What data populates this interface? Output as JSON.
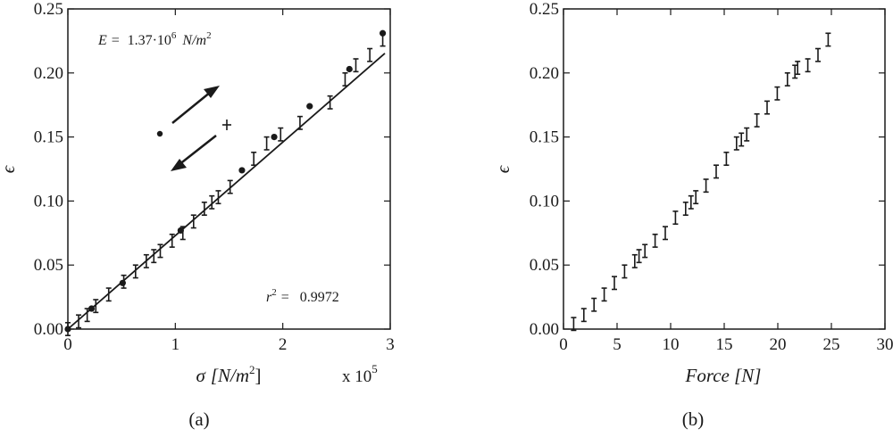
{
  "chart_data": [
    {
      "type": "scatter",
      "panel_label": "(a)",
      "xlabel_symbol": "σ",
      "xlabel_units": "[N/m",
      "xlabel_units_sup": "2",
      "xlabel_units_close": "]",
      "ylabel": "ϵ",
      "x_multiplier_text": "x 10",
      "x_multiplier_exp": "5",
      "xlim": [
        0,
        3
      ],
      "ylim": [
        0,
        0.25
      ],
      "x_ticks": [
        "0",
        "1",
        "2",
        "3"
      ],
      "y_ticks": [
        "0.00",
        "0.05",
        "0.10",
        "0.15",
        "0.20",
        "0.25"
      ],
      "annotation_E_lhs": "E =",
      "annotation_E_value": "1.37·10",
      "annotation_E_exp": "6",
      "annotation_E_units": "N/m",
      "annotation_E_units_exp": "2",
      "annotation_r2_lhs": "r",
      "annotation_r2_exp": "2",
      "annotation_r2_eq": "=",
      "annotation_r2_value": "0.9972",
      "fit_line": {
        "x": [
          0,
          2.95
        ],
        "y": [
          0,
          0.2153
        ]
      },
      "series": [
        {
          "marker": "dot",
          "x": [
            0.0,
            0.22,
            0.51,
            1.05,
            1.62,
            1.92,
            2.25,
            2.62,
            2.93
          ],
          "y": [
            0.0,
            0.016,
            0.036,
            0.077,
            0.124,
            0.15,
            0.174,
            0.203,
            0.231
          ]
        },
        {
          "marker": "errorbar",
          "x": [
            0.0,
            0.1,
            0.18,
            0.26,
            0.38,
            0.52,
            0.63,
            0.73,
            0.8,
            0.86,
            0.97,
            1.07,
            1.17,
            1.27,
            1.34,
            1.4,
            1.51,
            1.73,
            1.85,
            1.98,
            2.16,
            2.44,
            2.58,
            2.68,
            2.81,
            2.93
          ],
          "y": [
            0.0,
            0.006,
            0.011,
            0.018,
            0.027,
            0.037,
            0.045,
            0.053,
            0.057,
            0.061,
            0.069,
            0.075,
            0.084,
            0.094,
            0.099,
            0.103,
            0.111,
            0.133,
            0.145,
            0.152,
            0.161,
            0.177,
            0.195,
            0.206,
            0.214,
            0.226
          ],
          "err": 0.005
        }
      ]
    },
    {
      "type": "scatter",
      "panel_label": "(b)",
      "xlabel": "Force [N]",
      "ylabel": "ϵ",
      "xlim": [
        0,
        30
      ],
      "ylim": [
        0,
        0.25
      ],
      "x_ticks": [
        "0",
        "5",
        "10",
        "15",
        "20",
        "25",
        "30"
      ],
      "y_ticks": [
        "0.00",
        "0.05",
        "0.10",
        "0.15",
        "0.20",
        "0.25"
      ],
      "series": [
        {
          "marker": "errorbar",
          "x": [
            0.95,
            1.9,
            2.85,
            3.8,
            4.75,
            5.7,
            6.65,
            7.05,
            7.6,
            8.55,
            9.5,
            10.45,
            11.4,
            11.9,
            12.35,
            13.3,
            14.25,
            15.2,
            16.15,
            16.6,
            17.1,
            18.05,
            19.0,
            19.95,
            20.9,
            21.6,
            21.85,
            22.8,
            23.75,
            24.7
          ],
          "y": [
            0.004,
            0.011,
            0.019,
            0.027,
            0.036,
            0.045,
            0.053,
            0.057,
            0.061,
            0.069,
            0.075,
            0.087,
            0.094,
            0.099,
            0.103,
            0.112,
            0.123,
            0.133,
            0.145,
            0.148,
            0.152,
            0.163,
            0.173,
            0.184,
            0.195,
            0.201,
            0.204,
            0.206,
            0.214,
            0.226
          ],
          "err": 0.005
        }
      ]
    }
  ]
}
